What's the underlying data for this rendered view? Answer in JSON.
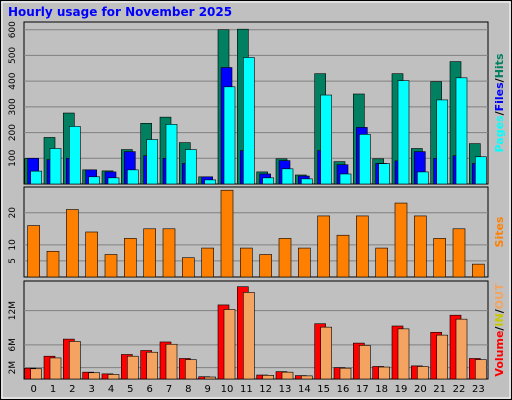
{
  "chart_data": [
    {
      "type": "bar",
      "title": "Hourly usage for November 2025",
      "legend_separator": "/",
      "ylim": [
        0,
        630
      ],
      "yticks": [
        100,
        200,
        300,
        400,
        500,
        600
      ],
      "series": [
        {
          "name": "Pages",
          "color": "#00ffff",
          "values": [
            50,
            138,
            224,
            28,
            24,
            55,
            173,
            232,
            134,
            16,
            378,
            492,
            24,
            59,
            20,
            346,
            39,
            193,
            79,
            402,
            47,
            327,
            413,
            106
          ]
        },
        {
          "name": "Files",
          "color": "#0000ff",
          "values": [
            100,
            95,
            100,
            55,
            47,
            126,
            110,
            100,
            80,
            28,
            453,
            130,
            39,
            91,
            31,
            130,
            75,
            220,
            80,
            90,
            126,
            100,
            110,
            80
          ]
        },
        {
          "name": "Hits",
          "color": "#008060",
          "values": [
            100,
            181,
            276,
            55,
            51,
            134,
            236,
            260,
            161,
            28,
            600,
            602,
            47,
            98,
            35,
            429,
            87,
            350,
            98,
            429,
            138,
            398,
            476,
            157
          ]
        }
      ]
    },
    {
      "type": "bar",
      "ylim": [
        0,
        28
      ],
      "yticks": [
        5,
        10,
        20
      ],
      "series": [
        {
          "name": "Sites",
          "color": "#ff8000",
          "values": [
            16,
            8,
            21,
            14,
            7,
            12,
            15,
            15,
            6,
            9,
            27,
            9,
            7,
            12,
            9,
            19,
            13,
            19,
            9,
            23,
            19,
            12,
            15,
            4
          ]
        }
      ]
    },
    {
      "type": "bar",
      "legend_separator": "/",
      "categories": [
        "0",
        "1",
        "2",
        "3",
        "4",
        "5",
        "6",
        "7",
        "8",
        "9",
        "10",
        "11",
        "12",
        "13",
        "14",
        "15",
        "16",
        "17",
        "18",
        "19",
        "20",
        "21",
        "22",
        "23"
      ],
      "ylim": [
        0,
        17200000
      ],
      "yticks": [
        {
          "value": 2000000,
          "label": "2M"
        },
        {
          "value": 6000000,
          "label": "6M"
        },
        {
          "value": 12000000,
          "label": "12M"
        }
      ],
      "series": [
        {
          "name": "Volume",
          "color": "#ff0000",
          "values": [
            1900000,
            4000000,
            7000000,
            1200000,
            900000,
            4300000,
            5000000,
            6500000,
            3600000,
            400000,
            13000000,
            16200000,
            700000,
            1300000,
            600000,
            9700000,
            2000000,
            6300000,
            2200000,
            9300000,
            2300000,
            8200000,
            11200000,
            3600000
          ]
        },
        {
          "name": "IN",
          "color": "#c8c800",
          "values": [
            0,
            0,
            0,
            0,
            0,
            0,
            0,
            0,
            0,
            0,
            0,
            0,
            0,
            0,
            0,
            0,
            0,
            0,
            0,
            0,
            0,
            0,
            0,
            0
          ]
        },
        {
          "name": "OUT",
          "color": "#f4a460",
          "values": [
            1800000,
            3700000,
            6600000,
            1100000,
            800000,
            4000000,
            4700000,
            6100000,
            3400000,
            350000,
            12200000,
            15200000,
            650000,
            1200000,
            550000,
            9100000,
            1900000,
            5900000,
            2100000,
            8800000,
            2200000,
            7700000,
            10500000,
            3400000
          ]
        }
      ]
    }
  ]
}
